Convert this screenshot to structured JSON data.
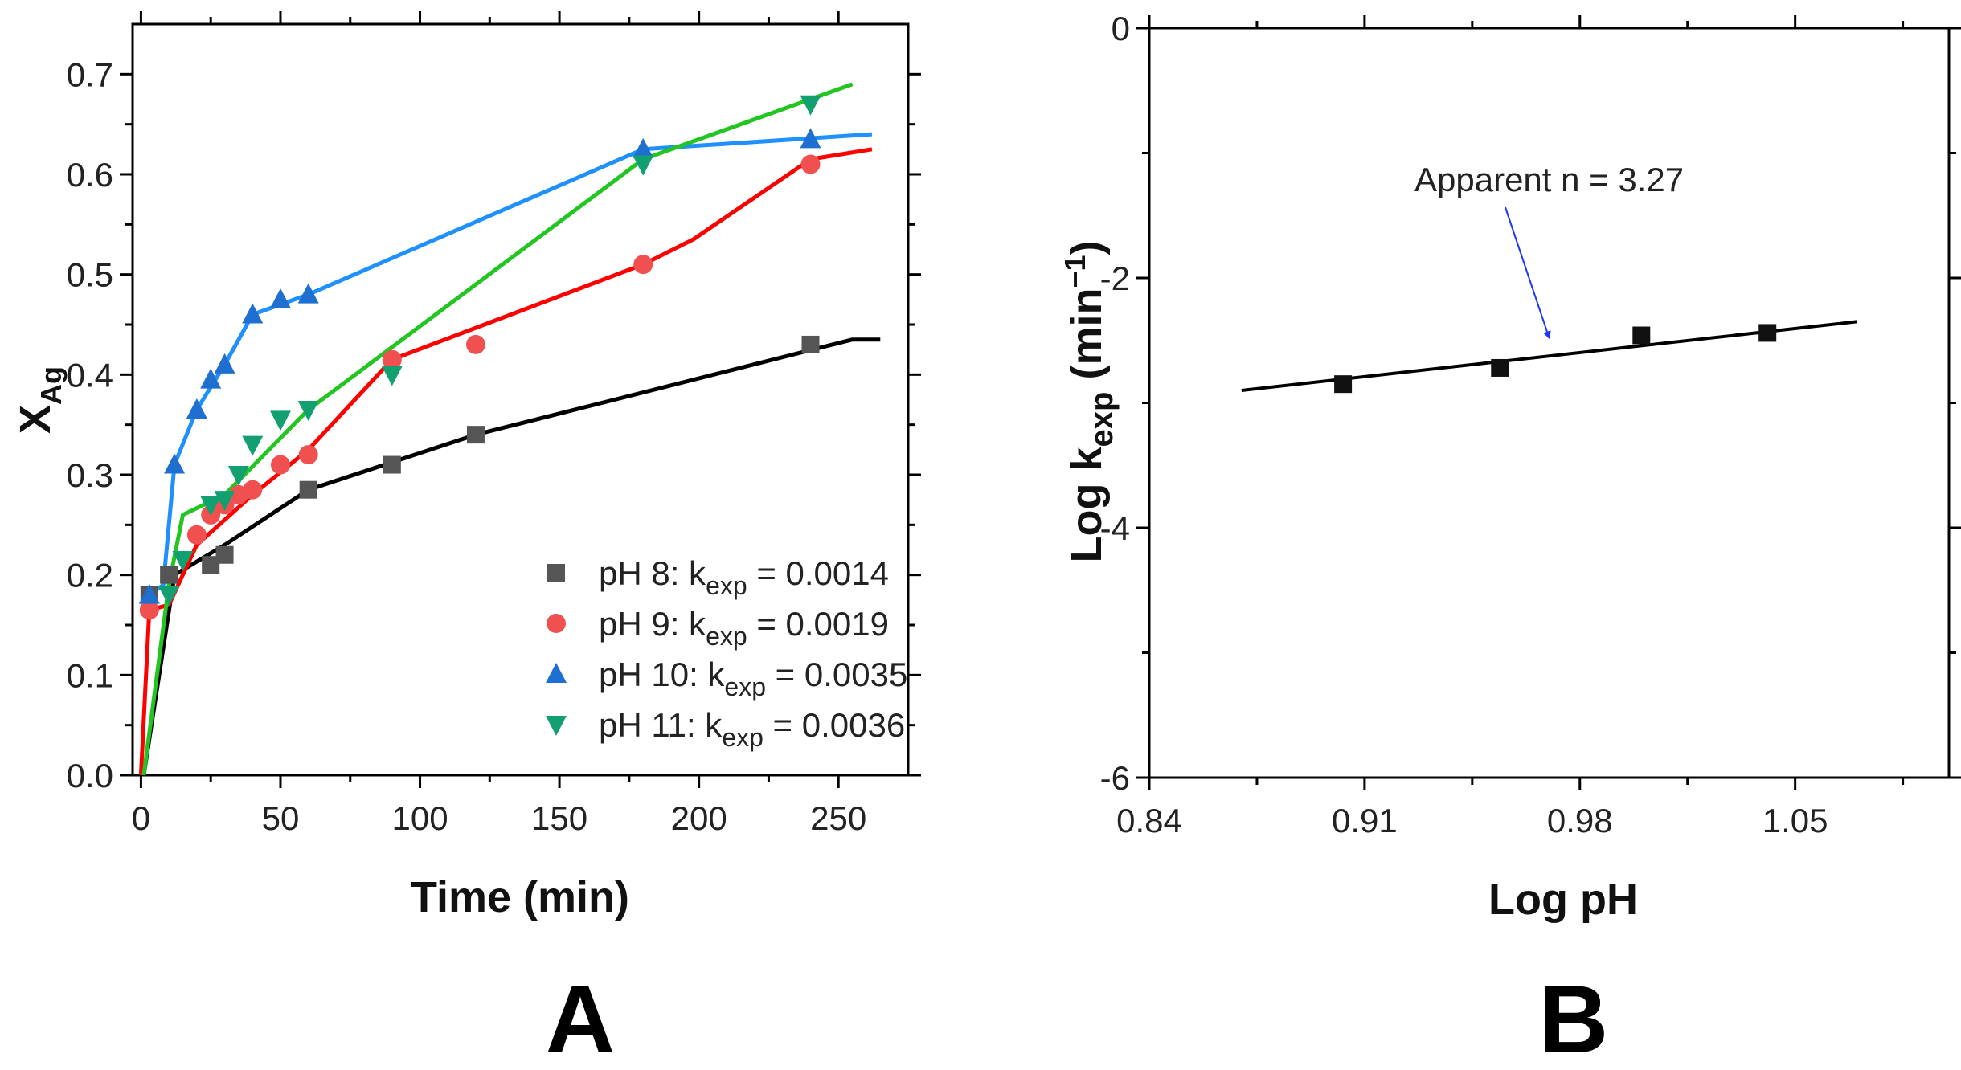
{
  "chart_data": [
    {
      "type": "line",
      "panel": "A",
      "panel_label": "A",
      "xlabel": "Time (min)",
      "ylabel": "X",
      "ylabel_sub": "Ag",
      "xlim": [
        -3,
        275
      ],
      "ylim": [
        0,
        0.75
      ],
      "xticks": [
        0,
        50,
        100,
        150,
        200,
        250
      ],
      "xtick_labels": [
        "0",
        "50",
        "100",
        "150",
        "200",
        "250"
      ],
      "yticks": [
        0.0,
        0.1,
        0.2,
        0.3,
        0.4,
        0.5,
        0.6,
        0.7
      ],
      "ytick_labels": [
        "0.0",
        "0.1",
        "0.2",
        "0.3",
        "0.4",
        "0.5",
        "0.6",
        "0.7"
      ],
      "legend_position": "bottom-right",
      "series": [
        {
          "name": "pH 8",
          "legend_prefix": "pH 8: k",
          "legend_sub": "exp",
          "legend_value": " = 0.0014",
          "marker": "square",
          "marker_color": "#555555",
          "line_color": "#000000",
          "points": [
            [
              3,
              0.18
            ],
            [
              10,
              0.2
            ],
            [
              25,
              0.21
            ],
            [
              30,
              0.22
            ],
            [
              60,
              0.285
            ],
            [
              90,
              0.31
            ],
            [
              120,
              0.34
            ],
            [
              240,
              0.43
            ]
          ],
          "fit": [
            [
              1,
              0.0
            ],
            [
              12,
              0.2
            ],
            [
              30,
              0.23
            ],
            [
              60,
              0.285
            ],
            [
              120,
              0.34
            ],
            [
              255,
              0.435
            ],
            [
              265,
              0.435
            ]
          ]
        },
        {
          "name": "pH 9",
          "legend_prefix": "pH 9: k",
          "legend_sub": "exp",
          "legend_value": " = 0.0019",
          "marker": "circle",
          "marker_color": "#f05050",
          "line_color": "#ff0000",
          "points": [
            [
              3,
              0.165
            ],
            [
              20,
              0.24
            ],
            [
              25,
              0.26
            ],
            [
              30,
              0.27
            ],
            [
              35,
              0.28
            ],
            [
              40,
              0.285
            ],
            [
              50,
              0.31
            ],
            [
              60,
              0.32
            ],
            [
              90,
              0.415
            ],
            [
              120,
              0.43
            ],
            [
              180,
              0.51
            ],
            [
              240,
              0.61
            ]
          ],
          "fit": [
            [
              0,
              0.0
            ],
            [
              3,
              0.165
            ],
            [
              10,
              0.17
            ],
            [
              20,
              0.23
            ],
            [
              40,
              0.28
            ],
            [
              60,
              0.325
            ],
            [
              90,
              0.415
            ],
            [
              180,
              0.51
            ],
            [
              198,
              0.535
            ],
            [
              240,
              0.615
            ],
            [
              262,
              0.625
            ]
          ]
        },
        {
          "name": "pH 10",
          "legend_prefix": "pH 10: k",
          "legend_sub": "exp",
          "legend_value": " = 0.0035",
          "marker": "triangle-up",
          "marker_color": "#1f6fd0",
          "line_color": "#1e90ff",
          "points": [
            [
              3,
              0.18
            ],
            [
              12,
              0.31
            ],
            [
              20,
              0.365
            ],
            [
              25,
              0.395
            ],
            [
              30,
              0.41
            ],
            [
              40,
              0.46
            ],
            [
              50,
              0.475
            ],
            [
              60,
              0.48
            ],
            [
              180,
              0.625
            ],
            [
              240,
              0.635
            ]
          ],
          "fit": [
            [
              3,
              0.18
            ],
            [
              8,
              0.19
            ],
            [
              12,
              0.31
            ],
            [
              20,
              0.365
            ],
            [
              30,
              0.41
            ],
            [
              40,
              0.46
            ],
            [
              60,
              0.48
            ],
            [
              180,
              0.625
            ],
            [
              262,
              0.64
            ]
          ]
        },
        {
          "name": "pH 11",
          "legend_prefix": "pH 11: k",
          "legend_sub": "exp",
          "legend_value": " = 0.0036",
          "marker": "triangle-down",
          "marker_color": "#12a070",
          "line_color": "#22c522",
          "points": [
            [
              10,
              0.18
            ],
            [
              15,
              0.215
            ],
            [
              25,
              0.27
            ],
            [
              30,
              0.275
            ],
            [
              35,
              0.3
            ],
            [
              40,
              0.33
            ],
            [
              50,
              0.355
            ],
            [
              60,
              0.365
            ],
            [
              90,
              0.4
            ],
            [
              180,
              0.61
            ],
            [
              240,
              0.67
            ]
          ],
          "fit": [
            [
              1,
              0.0
            ],
            [
              10,
              0.19
            ],
            [
              15,
              0.26
            ],
            [
              30,
              0.28
            ],
            [
              60,
              0.365
            ],
            [
              180,
              0.615
            ],
            [
              255,
              0.69
            ]
          ]
        }
      ]
    },
    {
      "type": "scatter",
      "panel": "B",
      "panel_label": "B",
      "xlabel": "Log pH",
      "ylabel": "Log k",
      "ylabel_sub": "exp",
      "ylabel_tail": " (min",
      "ylabel_sup": "−1",
      "ylabel_close": ")",
      "xlim": [
        0.84,
        1.1
      ],
      "ylim": [
        -6,
        0
      ],
      "xticks": [
        0.84,
        0.91,
        0.98,
        1.05
      ],
      "xtick_labels": [
        "0.84",
        "0.91",
        "0.98",
        "1.05"
      ],
      "yticks": [
        0,
        -2,
        -4,
        -6
      ],
      "ytick_labels": [
        "0",
        "-2",
        "-4",
        "-6"
      ],
      "series": [
        {
          "name": "Log kexp",
          "marker": "square",
          "marker_color": "#111111",
          "points": [
            [
              0.903,
              -2.85
            ],
            [
              0.954,
              -2.72
            ],
            [
              1.0,
              -2.46
            ],
            [
              1.041,
              -2.44
            ]
          ]
        }
      ],
      "fit": {
        "x": [
          0.87,
          1.07
        ],
        "y": [
          -2.9,
          -2.35
        ],
        "color": "#000000"
      },
      "annotation": {
        "text": "Apparent n = 3.27",
        "arrow_color": "#1a35ff",
        "arrow_to": [
          0.97,
          -2.53
        ]
      }
    }
  ]
}
